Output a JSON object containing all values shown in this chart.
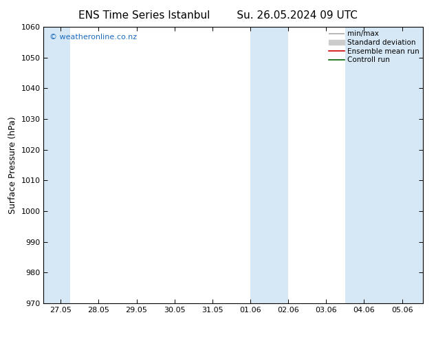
{
  "title_left": "ENS Time Series Istanbul",
  "title_right": "Su. 26.05.2024 09 UTC",
  "ylabel": "Surface Pressure (hPa)",
  "ylim": [
    970,
    1060
  ],
  "yticks": [
    970,
    980,
    990,
    1000,
    1010,
    1020,
    1030,
    1040,
    1050,
    1060
  ],
  "x_tick_labels": [
    "27.05",
    "28.05",
    "29.05",
    "30.05",
    "31.05",
    "01.06",
    "02.06",
    "03.06",
    "04.06",
    "05.06"
  ],
  "x_tick_dates": [
    "2024-05-27",
    "2024-05-28",
    "2024-05-29",
    "2024-05-30",
    "2024-05-31",
    "2024-06-01",
    "2024-06-02",
    "2024-06-03",
    "2024-06-04",
    "2024-06-05"
  ],
  "shaded_bands": [
    [
      "2024-05-26 18:00",
      "2024-05-27 12:00"
    ],
    [
      "2024-06-01 00:00",
      "2024-06-02 00:00"
    ],
    [
      "2024-06-03 12:00",
      "2024-06-04 06:00"
    ],
    [
      "2024-06-04 06:00",
      "2024-06-05 00:00"
    ]
  ],
  "shade_color": "#d6e8f5",
  "bg_color": "#ffffff",
  "watermark_text": "© weatheronline.co.nz",
  "watermark_color": "#1a6bbf",
  "legend_items": [
    {
      "label": "min/max",
      "color": "#aaaaaa",
      "lw": 1.2
    },
    {
      "label": "Standard deviation",
      "color": "#cccccc",
      "lw": 5
    },
    {
      "label": "Ensemble mean run",
      "color": "#cc0000",
      "lw": 1.2
    },
    {
      "label": "Controll run",
      "color": "#006600",
      "lw": 1.2
    }
  ],
  "title_fontsize": 11,
  "ylabel_fontsize": 9,
  "tick_fontsize": 8,
  "legend_fontsize": 7.5,
  "watermark_fontsize": 8
}
